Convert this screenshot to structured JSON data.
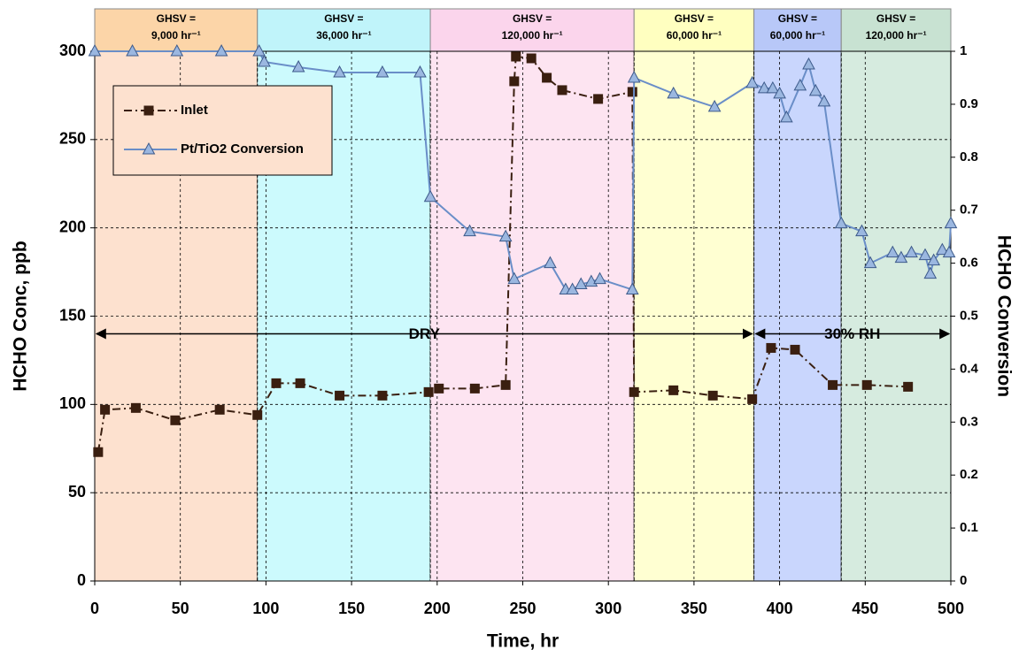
{
  "chart_data": {
    "type": "line",
    "x_label": "Time, hr",
    "y_label": "HCHO Conc, ppb",
    "y2_label": "HCHO Conversion",
    "xlim": [
      0,
      500
    ],
    "xticks": [
      0,
      50,
      100,
      150,
      200,
      250,
      300,
      350,
      400,
      450,
      500
    ],
    "ylim": [
      0,
      300
    ],
    "yticks": [
      0,
      50,
      100,
      150,
      200,
      250,
      300
    ],
    "y2lim": [
      0,
      1
    ],
    "y2ticks": [
      0,
      0.1,
      0.2,
      0.3,
      0.4,
      0.5,
      0.6,
      0.7,
      0.8,
      0.9,
      1
    ],
    "grid": true,
    "legend": "upper left",
    "regions": [
      {
        "x0": 0,
        "x1": 95,
        "color": "#fde1cf",
        "header_color": "#fcd5a8",
        "label": [
          "GHSV =",
          "9,000 hr⁻¹"
        ]
      },
      {
        "x0": 95,
        "x1": 196,
        "color": "#ccfafd",
        "header_color": "#c0f4fa",
        "label": [
          "GHSV =",
          "36,000 hr⁻¹"
        ]
      },
      {
        "x0": 196,
        "x1": 315,
        "color": "#fde4f1",
        "header_color": "#fbd5ec",
        "label": [
          "GHSV =",
          "120,000 hr⁻¹"
        ]
      },
      {
        "x0": 315,
        "x1": 385,
        "color": "#ffffd2",
        "header_color": "#ffffc0",
        "label": [
          "GHSV =",
          "60,000 hr⁻¹"
        ]
      },
      {
        "x0": 385,
        "x1": 436,
        "color": "#c9d6fd",
        "header_color": "#b8c8f8",
        "label": [
          "GHSV =",
          "60,000 hr⁻¹"
        ]
      },
      {
        "x0": 436,
        "x1": 500,
        "color": "#d6ebdf",
        "header_color": "#c8e2d2",
        "label": [
          "GHSV =",
          "120,000 hr⁻¹"
        ]
      }
    ],
    "annotations": [
      {
        "text": "DRY",
        "x0": 0,
        "x1": 385,
        "y": 140
      },
      {
        "text": "30% RH",
        "x0": 385,
        "x1": 500,
        "y": 140
      }
    ],
    "series": [
      {
        "name": "Inlet",
        "color": "#3a1f10",
        "marker": "square",
        "x": [
          2,
          6,
          24,
          47,
          73,
          95,
          106,
          120,
          143,
          168,
          195,
          201,
          222,
          240,
          245,
          246,
          255,
          264,
          273,
          294,
          314,
          315,
          338,
          361,
          384,
          395,
          409,
          431,
          451,
          475
        ],
        "values": [
          73,
          97,
          98,
          91,
          97,
          94,
          112,
          112,
          105,
          105,
          107,
          109,
          109,
          111,
          283,
          297,
          296,
          285,
          278,
          273,
          277,
          107,
          108,
          105,
          103,
          132,
          131,
          111,
          111,
          110
        ]
      },
      {
        "name": "Pt/TiO2 Conversion",
        "color": "#6a8ec8",
        "marker": "triangle",
        "axis": "y2",
        "x": [
          0,
          22,
          48,
          74,
          96,
          99,
          119,
          143,
          168,
          190,
          196,
          219,
          240,
          245,
          266,
          275,
          279,
          284,
          290,
          295,
          314,
          315,
          338,
          362,
          384,
          391,
          396,
          400,
          404,
          412,
          417,
          421,
          426,
          436,
          448,
          453,
          466,
          471,
          477,
          485,
          488,
          490,
          495,
          499,
          500
        ],
        "values": [
          1,
          1,
          1,
          1,
          1,
          0.98,
          0.97,
          0.96,
          0.96,
          0.96,
          0.725,
          0.66,
          0.65,
          0.57,
          0.6,
          0.55,
          0.55,
          0.56,
          0.565,
          0.57,
          0.55,
          0.95,
          0.92,
          0.895,
          0.94,
          0.93,
          0.93,
          0.92,
          0.875,
          0.935,
          0.975,
          0.925,
          0.905,
          0.675,
          0.66,
          0.6,
          0.62,
          0.61,
          0.62,
          0.615,
          0.58,
          0.605,
          0.625,
          0.62,
          0.675
        ]
      }
    ]
  }
}
